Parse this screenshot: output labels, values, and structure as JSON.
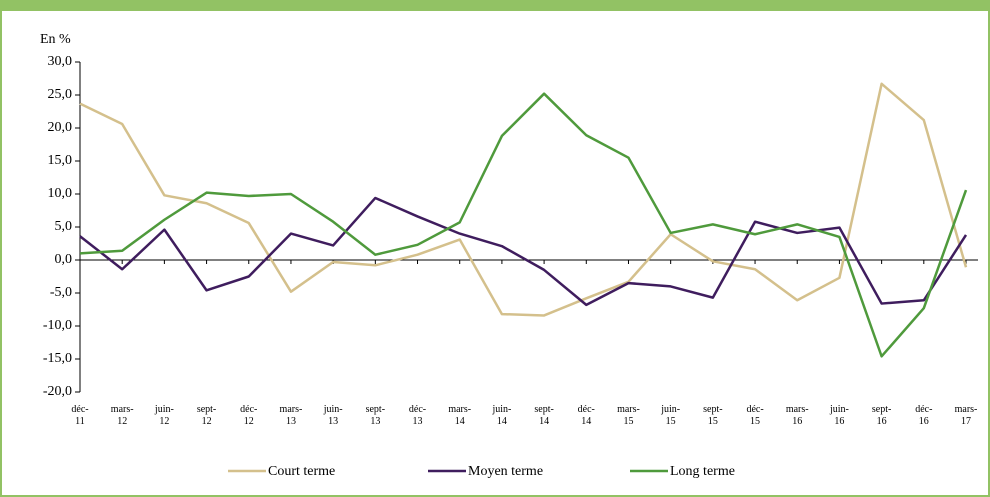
{
  "chart_data": {
    "type": "line",
    "y_axis_label": "En %",
    "categories": [
      "déc-11",
      "mars-12",
      "juin-12",
      "sept-12",
      "déc-12",
      "mars-13",
      "juin-13",
      "sept-13",
      "déc-13",
      "mars-14",
      "juin-14",
      "sept-14",
      "déc-14",
      "mars-15",
      "juin-15",
      "sept-15",
      "déc-15",
      "mars-16",
      "juin-16",
      "sept-16",
      "déc-16",
      "mars-17"
    ],
    "series": [
      {
        "name": "Court terme",
        "color": "#d4c08c",
        "values": [
          23.7,
          20.6,
          9.8,
          8.6,
          5.6,
          -4.8,
          -0.3,
          -0.8,
          0.8,
          3.1,
          -8.2,
          -8.4,
          -5.8,
          -3.3,
          3.9,
          -0.2,
          -1.4,
          -6.1,
          -2.7,
          26.7,
          21.2,
          -1.1
        ]
      },
      {
        "name": "Moyen terme",
        "color": "#3f1d5e",
        "values": [
          3.6,
          -1.4,
          4.6,
          -4.6,
          -2.5,
          4.0,
          2.2,
          9.4,
          6.6,
          4.0,
          2.1,
          -1.5,
          -6.8,
          -3.5,
          -4.0,
          -5.7,
          5.8,
          4.1,
          4.9,
          -6.6,
          -6.1,
          3.8
        ]
      },
      {
        "name": "Long terme",
        "color": "#4f9a3c",
        "values": [
          1.0,
          1.4,
          6.1,
          10.2,
          9.7,
          10.0,
          5.8,
          0.8,
          2.3,
          5.7,
          18.8,
          25.2,
          18.9,
          15.5,
          4.1,
          5.4,
          3.9,
          5.4,
          3.5,
          -14.6,
          -7.3,
          10.6
        ]
      }
    ],
    "ylim": [
      -20,
      30
    ],
    "yticks": [
      {
        "value": -20,
        "label": "-20,0"
      },
      {
        "value": -15,
        "label": "-15,0"
      },
      {
        "value": -10,
        "label": "-10,0"
      },
      {
        "value": -5,
        "label": "-5,0"
      },
      {
        "value": 0,
        "label": "0,0"
      },
      {
        "value": 5,
        "label": "5,0"
      },
      {
        "value": 10,
        "label": "10,0"
      },
      {
        "value": 15,
        "label": "15,0"
      },
      {
        "value": 20,
        "label": "20,0"
      },
      {
        "value": 25,
        "label": "25,0"
      },
      {
        "value": 30,
        "label": "30,0"
      }
    ],
    "legend": "bottom"
  }
}
